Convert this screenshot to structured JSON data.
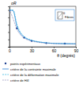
{
  "chart_data": {
    "type": "line",
    "x_label": "θ (degrés)",
    "y_label": "σR",
    "annotations": [
      "Fibres",
      "θ"
    ],
    "x": [
      0,
      5,
      10,
      15,
      20,
      30,
      40,
      50,
      60,
      75,
      90
    ],
    "series": [
      {
        "name": "points expérimentaux",
        "color": "#1f3f8f",
        "type": "scatter",
        "marker": "circle",
        "values": [
          980,
          null,
          500,
          null,
          250,
          160,
          null,
          100,
          null,
          85,
          null
        ]
      },
      {
        "name": "critère de la contrainte maximale",
        "color": "#2a7fd4",
        "line_style": "solid",
        "values": [
          1000,
          980,
          560,
          360,
          260,
          170,
          130,
          105,
          92,
          84,
          80
        ]
      },
      {
        "name": "critère de la déformation maximale",
        "color": "#3bb8e0",
        "line_style": "dashed",
        "values": [
          1000,
          1000,
          620,
          390,
          280,
          180,
          135,
          108,
          94,
          85,
          80
        ]
      },
      {
        "name": "critère de Hill",
        "color": "#5a5a9a",
        "line_style": "dotted",
        "values": [
          1000,
          760,
          480,
          320,
          235,
          155,
          118,
          98,
          88,
          82,
          80
        ]
      }
    ],
    "xlim": [
      0,
      90
    ],
    "xticks": [
      0,
      30,
      60,
      90
    ],
    "ylim": [
      0,
      1100
    ],
    "yticks": [
      0,
      200,
      400,
      600,
      800,
      1000
    ],
    "tick_labels": "x",
    "grid": false,
    "legend": "bottom"
  }
}
